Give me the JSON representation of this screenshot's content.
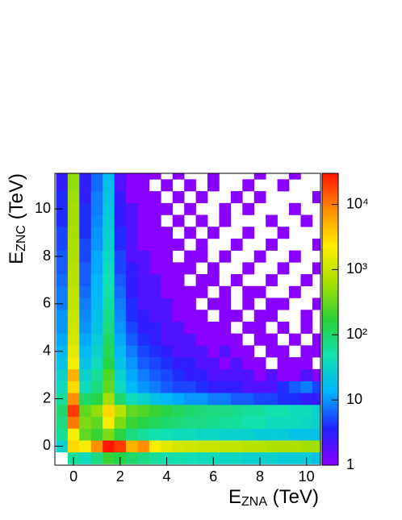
{
  "chart_data": {
    "type": "heatmap",
    "xlabel": {
      "main": "E",
      "sub": "ZNA",
      "unit": "(TeV)"
    },
    "ylabel": {
      "main": "E",
      "sub": "ZNC",
      "unit": "(TeV)"
    },
    "xlim": [
      -0.8,
      10.6
    ],
    "xticks": [
      0,
      2,
      4,
      6,
      8,
      10
    ],
    "ylim": [
      -0.8,
      11.5
    ],
    "yticks": [
      0,
      2,
      4,
      6,
      8,
      10
    ],
    "zlim": [
      1,
      30000
    ],
    "zlog": true,
    "zticks": [
      1,
      10,
      {
        "value": 100,
        "label": "10²"
      },
      {
        "value": 1000,
        "label": "10³"
      },
      {
        "value": 10000,
        "label": "10⁴"
      }
    ],
    "palette": [
      "#8800ff",
      "#2222ff",
      "#00b4ff",
      "#11e0b0",
      "#2ad23a",
      "#a8e000",
      "#ffee00",
      "#ff8c00",
      "#ff1500"
    ],
    "xbins": [
      -0.75,
      -0.25,
      0.25,
      0.75,
      1.25,
      1.75,
      2.25,
      2.75,
      3.25,
      3.75,
      4.25,
      4.75,
      5.25,
      5.75,
      6.25,
      6.75,
      7.25,
      7.75,
      8.25,
      8.75,
      9.25,
      9.75,
      10.25,
      10.75
    ],
    "ybins": [
      -0.75,
      -0.25,
      0.25,
      0.75,
      1.25,
      1.75,
      2.25,
      2.75,
      3.25,
      3.75,
      4.25,
      4.75,
      5.25,
      5.75,
      6.25,
      6.75,
      7.25,
      7.75,
      8.25,
      8.75,
      9.25,
      9.75,
      10.25,
      10.75,
      11.25,
      11.75
    ],
    "values": [
      [
        null,
        60,
        40,
        80,
        200,
        150,
        100,
        80,
        60,
        50,
        50,
        45,
        40,
        40,
        35,
        35,
        30,
        30,
        30,
        25,
        25,
        25,
        20
      ],
      [
        30,
        3000,
        2000,
        8000,
        30000,
        20000,
        5000,
        8000,
        2000,
        1500,
        1200,
        1100,
        1000,
        1000,
        900,
        900,
        800,
        800,
        700,
        700,
        700,
        600,
        600
      ],
      [
        60,
        2000,
        300,
        200,
        400,
        150,
        80,
        60,
        50,
        45,
        40,
        40,
        35,
        35,
        30,
        30,
        30,
        25,
        25,
        25,
        20,
        20,
        20
      ],
      [
        80,
        10000,
        400,
        300,
        2000,
        400,
        200,
        150,
        120,
        100,
        90,
        80,
        80,
        70,
        60,
        60,
        50,
        50,
        40,
        40,
        40,
        35,
        30
      ],
      [
        100,
        20000,
        300,
        500,
        3000,
        800,
        300,
        250,
        200,
        150,
        120,
        100,
        90,
        80,
        80,
        70,
        60,
        60,
        50,
        50,
        40,
        40,
        30
      ],
      [
        60,
        8000,
        100,
        150,
        600,
        100,
        40,
        30,
        20,
        15,
        12,
        10,
        10,
        8,
        8,
        6,
        6,
        5,
        5,
        4,
        4,
        3,
        3
      ],
      [
        40,
        3000,
        40,
        80,
        300,
        40,
        15,
        10,
        8,
        6,
        5,
        5,
        4,
        3,
        3,
        3,
        2,
        2,
        2,
        4,
        6,
        8,
        5
      ],
      [
        30,
        5000,
        30,
        60,
        250,
        30,
        12,
        8,
        6,
        5,
        4,
        3,
        3,
        2,
        2,
        2,
        2,
        1,
        2,
        1,
        1,
        2,
        1
      ],
      [
        20,
        2000,
        20,
        40,
        150,
        20,
        10,
        6,
        5,
        4,
        3,
        3,
        2,
        2,
        1,
        2,
        1,
        1,
        null,
        1,
        1,
        1,
        null
      ],
      [
        15,
        1500,
        15,
        30,
        120,
        15,
        8,
        5,
        4,
        3,
        2,
        2,
        2,
        1,
        2,
        1,
        1,
        null,
        1,
        1,
        null,
        1,
        1
      ],
      [
        12,
        1200,
        12,
        25,
        100,
        12,
        6,
        4,
        3,
        2,
        2,
        2,
        1,
        1,
        1,
        1,
        null,
        1,
        1,
        null,
        1,
        null,
        1
      ],
      [
        10,
        1100,
        10,
        20,
        80,
        10,
        5,
        3,
        3,
        2,
        2,
        1,
        1,
        1,
        1,
        null,
        1,
        1,
        null,
        1,
        null,
        1,
        null
      ],
      [
        10,
        1000,
        9,
        18,
        70,
        9,
        4,
        3,
        2,
        2,
        1,
        1,
        1,
        null,
        1,
        1,
        null,
        1,
        1,
        null,
        null,
        1,
        null
      ],
      [
        8,
        900,
        8,
        16,
        60,
        8,
        4,
        2,
        2,
        2,
        1,
        1,
        null,
        1,
        1,
        null,
        1,
        null,
        1,
        1,
        null,
        null,
        1
      ],
      [
        8,
        900,
        7,
        15,
        50,
        7,
        3,
        2,
        2,
        1,
        1,
        1,
        1,
        null,
        1,
        null,
        1,
        1,
        null,
        null,
        1,
        null,
        null
      ],
      [
        7,
        800,
        6,
        14,
        45,
        6,
        3,
        2,
        2,
        1,
        1,
        null,
        1,
        1,
        null,
        1,
        null,
        null,
        1,
        null,
        null,
        1,
        null
      ],
      [
        6,
        800,
        6,
        12,
        40,
        5,
        3,
        2,
        1,
        1,
        1,
        1,
        null,
        1,
        null,
        null,
        1,
        null,
        null,
        1,
        null,
        null,
        1
      ],
      [
        6,
        700,
        5,
        12,
        35,
        5,
        2,
        2,
        1,
        1,
        null,
        1,
        1,
        null,
        1,
        null,
        null,
        1,
        null,
        null,
        1,
        null,
        null
      ],
      [
        5,
        700,
        5,
        10,
        30,
        4,
        2,
        1,
        1,
        1,
        1,
        null,
        1,
        null,
        null,
        1,
        null,
        null,
        1,
        null,
        null,
        null,
        1
      ],
      [
        5,
        650,
        4,
        10,
        28,
        4,
        2,
        1,
        1,
        1,
        null,
        1,
        null,
        1,
        null,
        null,
        1,
        null,
        null,
        1,
        null,
        null,
        null
      ],
      [
        4,
        600,
        4,
        9,
        25,
        3,
        2,
        1,
        1,
        null,
        1,
        null,
        1,
        null,
        1,
        null,
        null,
        null,
        1,
        null,
        null,
        1,
        null
      ],
      [
        4,
        600,
        4,
        8,
        22,
        3,
        2,
        1,
        1,
        1,
        null,
        1,
        null,
        null,
        1,
        null,
        1,
        null,
        null,
        null,
        1,
        null,
        null
      ],
      [
        4,
        550,
        3,
        8,
        20,
        3,
        1,
        1,
        1,
        null,
        1,
        null,
        1,
        null,
        null,
        1,
        null,
        1,
        null,
        null,
        null,
        null,
        1
      ],
      [
        3,
        500,
        3,
        7,
        18,
        2,
        1,
        1,
        null,
        1,
        null,
        1,
        null,
        1,
        null,
        null,
        1,
        null,
        null,
        1,
        null,
        null,
        null
      ],
      [
        3,
        500,
        3,
        7,
        16,
        2,
        1,
        1,
        1,
        null,
        1,
        null,
        null,
        1,
        null,
        null,
        null,
        1,
        null,
        null,
        1,
        null,
        null
      ]
    ]
  }
}
